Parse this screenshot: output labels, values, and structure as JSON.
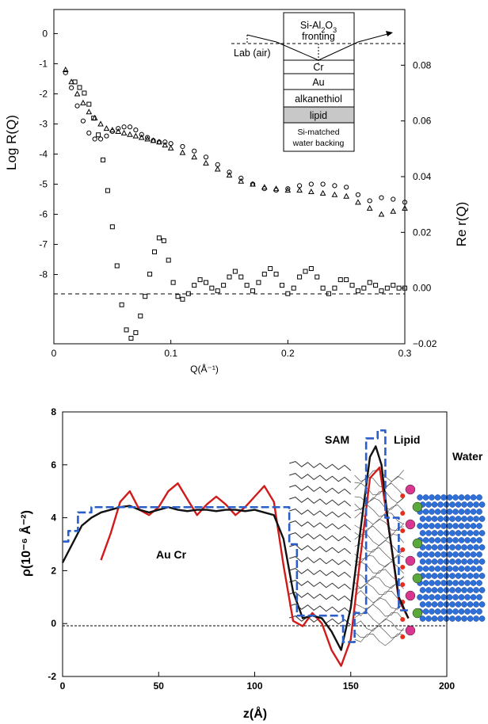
{
  "chart_data": [
    {
      "type": "scatter",
      "xlabel": "Q(Å⁻¹)",
      "ylabel": "Log R(Q)",
      "y2label": "Re r(Q)",
      "xlim": [
        0,
        0.3
      ],
      "ylim": [
        -10.3,
        0.8
      ],
      "y2lim": [
        -0.02,
        0.1
      ],
      "x_ticks": [
        "0",
        "0.1",
        "0.2",
        "0.3"
      ],
      "y_ticks": [
        "0",
        "-1",
        "-2",
        "-3",
        "-4",
        "-5",
        "-6",
        "-7",
        "-8"
      ],
      "y2_ticks": [
        "0.08",
        "0.06",
        "0.04",
        "0.02",
        "0.00",
        "−0.02"
      ],
      "inset": {
        "layers": [
          "Cr",
          "Au",
          "alkanethiol",
          "lipid",
          "Si-matched",
          "water backing"
        ],
        "fronting_line1": "Si-Al",
        "fronting_sub2": "2",
        "fronting_mid": "O",
        "fronting_sub3": "3",
        "fronting_line2": "fronting",
        "lab_label": "Lab (air)"
      },
      "series": [
        {
          "marker": "circle",
          "axis": "left",
          "x": [
            0.01,
            0.015,
            0.02,
            0.025,
            0.03,
            0.035,
            0.04,
            0.045,
            0.05,
            0.055,
            0.06,
            0.065,
            0.07,
            0.075,
            0.08,
            0.085,
            0.09,
            0.095,
            0.1,
            0.11,
            0.12,
            0.13,
            0.14,
            0.15,
            0.16,
            0.17,
            0.18,
            0.19,
            0.2,
            0.21,
            0.22,
            0.23,
            0.24,
            0.25,
            0.26,
            0.27,
            0.28,
            0.29,
            0.3
          ],
          "y": [
            -1.3,
            -1.8,
            -2.4,
            -2.9,
            -3.3,
            -3.5,
            -3.5,
            -3.4,
            -3.25,
            -3.15,
            -3.1,
            -3.1,
            -3.2,
            -3.35,
            -3.45,
            -3.55,
            -3.6,
            -3.6,
            -3.65,
            -3.75,
            -3.9,
            -4.1,
            -4.35,
            -4.6,
            -4.8,
            -5.0,
            -5.15,
            -5.2,
            -5.15,
            -5.05,
            -5.0,
            -5.0,
            -5.05,
            -5.1,
            -5.35,
            -5.55,
            -5.45,
            -5.5,
            -5.6
          ]
        },
        {
          "marker": "triangle",
          "axis": "left",
          "x": [
            0.01,
            0.015,
            0.02,
            0.025,
            0.03,
            0.035,
            0.04,
            0.045,
            0.05,
            0.055,
            0.06,
            0.065,
            0.07,
            0.075,
            0.08,
            0.085,
            0.09,
            0.095,
            0.1,
            0.11,
            0.12,
            0.13,
            0.14,
            0.15,
            0.16,
            0.17,
            0.18,
            0.19,
            0.2,
            0.21,
            0.22,
            0.23,
            0.24,
            0.25,
            0.26,
            0.27,
            0.28,
            0.29,
            0.3
          ],
          "y": [
            -1.2,
            -1.6,
            -2.0,
            -2.3,
            -2.6,
            -2.8,
            -3.0,
            -3.15,
            -3.2,
            -3.25,
            -3.3,
            -3.35,
            -3.4,
            -3.45,
            -3.5,
            -3.55,
            -3.6,
            -3.7,
            -3.8,
            -3.95,
            -4.1,
            -4.3,
            -4.5,
            -4.7,
            -4.9,
            -5.0,
            -5.1,
            -5.15,
            -5.2,
            -5.2,
            -5.25,
            -5.3,
            -5.35,
            -5.4,
            -5.6,
            -5.8,
            -6.0,
            -5.9,
            -5.8
          ]
        },
        {
          "marker": "square",
          "axis": "right",
          "x": [
            0.018,
            0.022,
            0.026,
            0.03,
            0.034,
            0.038,
            0.042,
            0.046,
            0.05,
            0.054,
            0.058,
            0.062,
            0.066,
            0.07,
            0.074,
            0.078,
            0.082,
            0.086,
            0.09,
            0.094,
            0.098,
            0.102,
            0.106,
            0.11,
            0.115,
            0.12,
            0.125,
            0.13,
            0.135,
            0.14,
            0.145,
            0.15,
            0.155,
            0.16,
            0.165,
            0.17,
            0.175,
            0.18,
            0.185,
            0.19,
            0.195,
            0.2,
            0.205,
            0.21,
            0.215,
            0.22,
            0.225,
            0.23,
            0.235,
            0.24,
            0.245,
            0.25,
            0.255,
            0.26,
            0.265,
            0.27,
            0.275,
            0.28,
            0.285,
            0.29,
            0.295,
            0.3
          ],
          "y": [
            0.074,
            0.072,
            0.07,
            0.066,
            0.061,
            0.055,
            0.046,
            0.035,
            0.022,
            0.008,
            -0.006,
            -0.015,
            -0.018,
            -0.016,
            -0.01,
            -0.003,
            0.005,
            0.013,
            0.018,
            0.017,
            0.01,
            0.002,
            -0.003,
            -0.004,
            -0.002,
            0.001,
            0.003,
            0.002,
            0.0,
            -0.001,
            0.001,
            0.004,
            0.006,
            0.004,
            0.001,
            -0.001,
            0.002,
            0.005,
            0.007,
            0.005,
            0.001,
            -0.002,
            0.0,
            0.004,
            0.006,
            0.007,
            0.004,
            0.0,
            -0.002,
            0.0,
            0.003,
            0.003,
            0.001,
            -0.001,
            0.0,
            0.002,
            0.001,
            -0.001,
            0.0,
            0.001,
            0.0,
            0.0
          ]
        }
      ]
    },
    {
      "type": "line",
      "xlabel": "z(Å)",
      "ylabel": "ρ(10⁻⁶ Å⁻²)",
      "xlim": [
        0,
        200
      ],
      "ylim": [
        -2,
        8
      ],
      "x_ticks": [
        "0",
        "50",
        "100",
        "150",
        "200"
      ],
      "y_ticks": [
        "8",
        "6",
        "4",
        "2",
        "0",
        "-2"
      ],
      "region_labels": [
        "SAM",
        "Lipid",
        "Water",
        "Au Cr"
      ],
      "series": [
        {
          "color": "#d11a1a",
          "x": [
            20,
            25,
            30,
            35,
            40,
            45,
            50,
            55,
            60,
            65,
            70,
            75,
            80,
            85,
            90,
            95,
            100,
            105,
            110,
            115,
            120,
            125,
            130,
            135,
            140,
            145,
            150,
            155,
            160,
            165,
            170,
            175,
            180
          ],
          "y": [
            2.4,
            3.4,
            4.6,
            5.0,
            4.3,
            4.1,
            4.4,
            5.0,
            5.3,
            4.7,
            4.1,
            4.5,
            4.8,
            4.5,
            4.1,
            4.4,
            4.8,
            5.2,
            4.6,
            2.2,
            0.1,
            -0.1,
            0.4,
            0.0,
            -1.0,
            -1.6,
            -0.6,
            2.5,
            5.5,
            5.9,
            3.5,
            0.9,
            0.2
          ]
        },
        {
          "color": "#111111",
          "x": [
            0,
            5,
            10,
            15,
            20,
            25,
            30,
            35,
            40,
            45,
            50,
            55,
            60,
            65,
            70,
            75,
            80,
            85,
            90,
            95,
            100,
            105,
            110,
            115,
            120,
            125,
            130,
            135,
            140,
            145,
            150,
            155,
            160,
            163,
            166,
            170,
            175,
            180
          ],
          "y": [
            2.3,
            3.0,
            3.7,
            4.0,
            4.2,
            4.3,
            4.4,
            4.45,
            4.3,
            4.2,
            4.3,
            4.4,
            4.3,
            4.25,
            4.3,
            4.3,
            4.25,
            4.3,
            4.3,
            4.25,
            4.3,
            4.2,
            4.1,
            3.2,
            1.2,
            0.2,
            0.3,
            0.2,
            -0.3,
            -1.0,
            0.6,
            3.5,
            6.3,
            6.7,
            6.0,
            3.5,
            1.0,
            0.2
          ]
        },
        {
          "color": "#2a5fc9",
          "x": [
            0,
            3,
            3,
            8,
            8,
            15,
            15,
            118,
            118,
            122,
            122,
            146,
            146,
            152,
            152,
            158,
            158,
            164,
            164,
            168,
            168,
            175,
            175,
            180
          ],
          "y": [
            3.1,
            3.1,
            3.5,
            3.5,
            4.2,
            4.2,
            4.4,
            4.4,
            3.0,
            3.0,
            0.3,
            0.3,
            -0.7,
            -0.7,
            0.4,
            0.4,
            7.0,
            7.0,
            7.3,
            7.3,
            4.0,
            4.0,
            0.5,
            0.5
          ]
        }
      ]
    }
  ]
}
